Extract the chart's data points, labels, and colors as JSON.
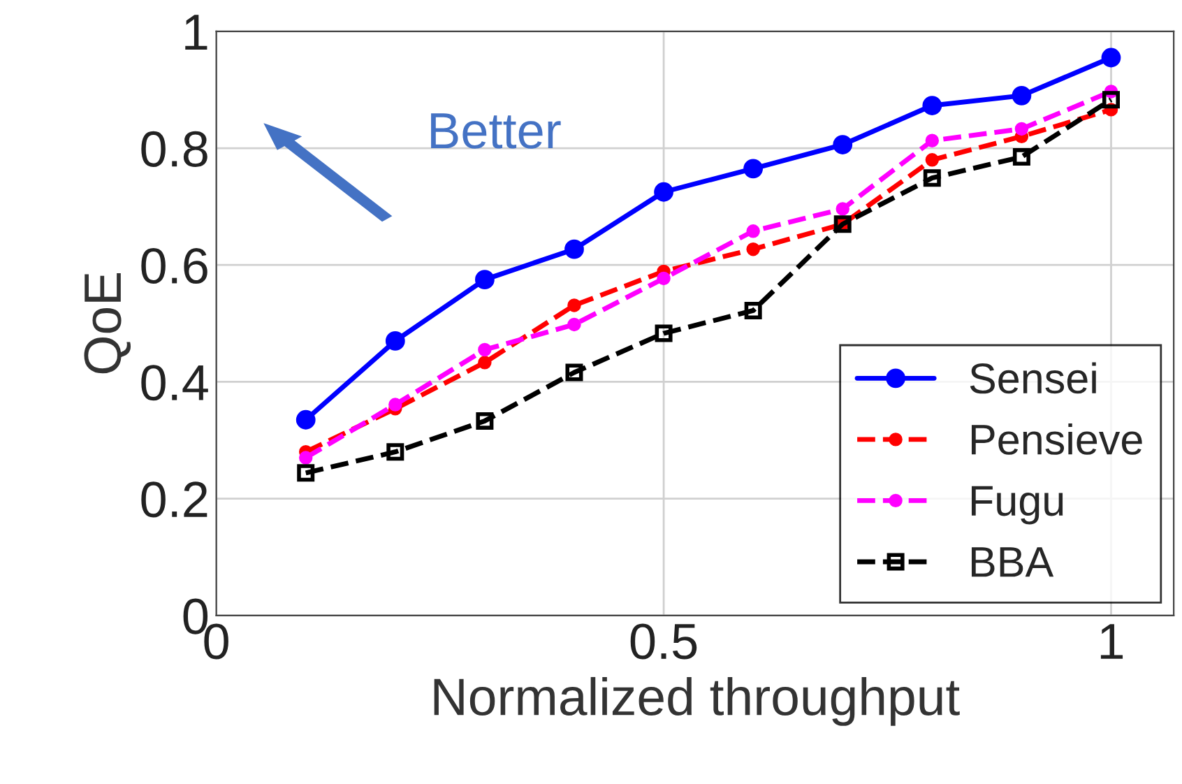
{
  "chart_data": {
    "type": "line",
    "xlabel": "Normalized throughput",
    "ylabel": "QoE",
    "x": [
      0.1,
      0.2,
      0.3,
      0.4,
      0.5,
      0.6,
      0.7,
      0.8,
      0.9,
      1.0
    ],
    "series": [
      {
        "name": "Sensei",
        "color": "#0000ff",
        "marker": "circle",
        "line_style": "solid",
        "values": [
          0.335,
          0.47,
          0.575,
          0.627,
          0.725,
          0.765,
          0.806,
          0.873,
          0.89,
          0.955
        ]
      },
      {
        "name": "Pensieve",
        "color": "#ff0000",
        "marker": "point",
        "line_style": "dashed",
        "values": [
          0.28,
          0.354,
          0.433,
          0.531,
          0.589,
          0.627,
          0.67,
          0.78,
          0.82,
          0.866
        ]
      },
      {
        "name": "Fugu",
        "color": "#ff00ff",
        "marker": "point",
        "line_style": "dashed",
        "values": [
          0.27,
          0.361,
          0.455,
          0.498,
          0.577,
          0.658,
          0.696,
          0.813,
          0.833,
          0.897
        ]
      },
      {
        "name": "BBA",
        "color": "#000000",
        "marker": "square",
        "line_style": "dashed",
        "values": [
          0.244,
          0.28,
          0.333,
          0.416,
          0.483,
          0.522,
          0.67,
          0.749,
          0.785,
          0.883
        ]
      }
    ],
    "xlim": [
      0,
      1.07
    ],
    "xticks": [
      0,
      0.5,
      1
    ],
    "ylim": [
      0,
      1
    ],
    "yticks": [
      0,
      0.2,
      0.4,
      0.6,
      0.8,
      1
    ],
    "grid": true,
    "legend": "bottom right",
    "annotations": [
      "Better"
    ]
  }
}
